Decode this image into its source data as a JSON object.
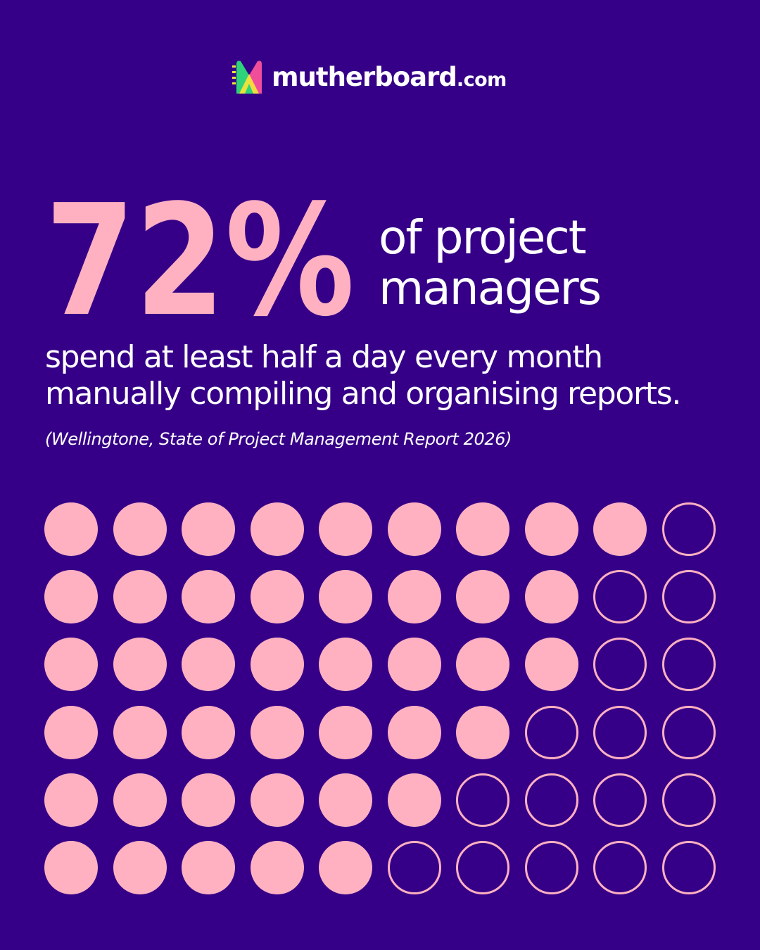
{
  "brand": {
    "name": "mutherboard",
    "tld": ".com",
    "colors": {
      "background": "#350087",
      "accent": "#ffb1c1",
      "logo_green": "#2ed27a",
      "logo_yellow": "#f3e33a",
      "logo_pink": "#f04d9b"
    }
  },
  "headline": {
    "stat": "72%",
    "lead_line_1": "of project",
    "lead_line_2": "managers"
  },
  "body": {
    "line_1": "spend at least half a day every month",
    "line_2": "manually compiling and organising reports."
  },
  "source": "(Wellingtone, State of Project Management Report 2026)",
  "dot_chart": {
    "rows": 6,
    "columns": 10,
    "filled_per_row": [
      9,
      8,
      8,
      7,
      6,
      5
    ]
  }
}
